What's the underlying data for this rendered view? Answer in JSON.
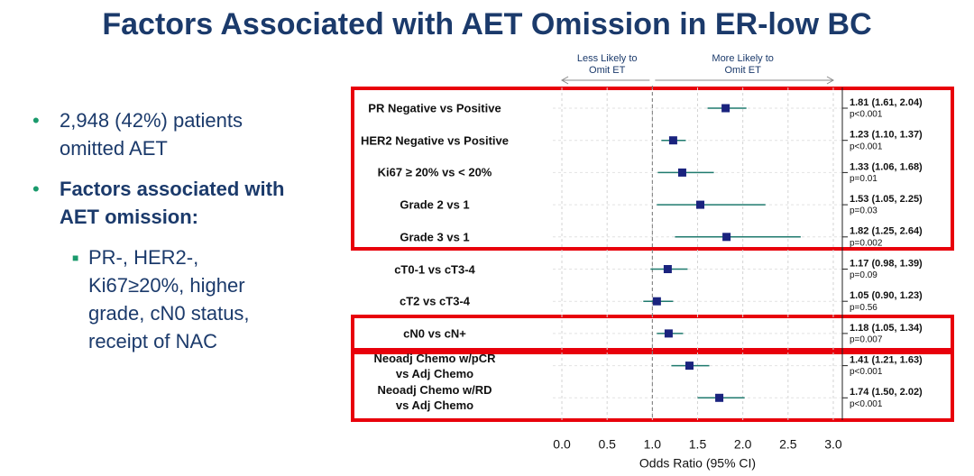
{
  "title": "Factors Associated with AET Omission in ER-low BC",
  "bullets": [
    {
      "text": "2,948 (42%) patients omitted AET",
      "level": 1,
      "bold": false
    },
    {
      "text": "Factors associated with AET omission:",
      "level": 1,
      "bold": true
    },
    {
      "text": "PR-, HER2-, Ki67≥20%, higher grade, cN0 status, receipt of NAC",
      "level": 2,
      "bold": false
    }
  ],
  "chart_data": {
    "type": "forest",
    "categories": [
      "PR Negative vs Positive",
      "HER2 Negative vs Positive",
      "Ki67 ≥ 20% vs < 20%",
      "Grade 2 vs 1",
      "Grade 3 vs 1",
      "cT0-1 vs cT3-4",
      "cT2 vs cT3-4",
      "cN0 vs cN+",
      "Neoadj Chemo w/pCR\nvs Adj Chemo",
      "Neoadj Chemo w/RD\nvs Adj Chemo"
    ],
    "values": [
      1.81,
      1.23,
      1.33,
      1.53,
      1.82,
      1.17,
      1.05,
      1.18,
      1.41,
      1.74
    ],
    "lower": [
      1.61,
      1.1,
      1.06,
      1.05,
      1.25,
      0.98,
      0.9,
      1.05,
      1.21,
      1.5
    ],
    "upper": [
      2.04,
      1.37,
      1.68,
      2.25,
      2.64,
      1.39,
      1.23,
      1.34,
      1.63,
      2.02
    ],
    "value_labels": [
      "1.81 (1.61, 2.04)",
      "1.23 (1.10, 1.37)",
      "1.33 (1.06, 1.68)",
      "1.53 (1.05, 2.25)",
      "1.82 (1.25, 2.64)",
      "1.17 (0.98, 1.39)",
      "1.05 (0.90, 1.23)",
      "1.18 (1.05, 1.34)",
      "1.41 (1.21, 1.63)",
      "1.74 (1.50, 2.02)"
    ],
    "p_labels": [
      "p<0.001",
      "p<0.001",
      "p=0.01",
      "p=0.03",
      "p=0.002",
      "p=0.09",
      "p=0.56",
      "p=0.007",
      "p<0.001",
      "p<0.001"
    ],
    "color": "#1a237e",
    "ci_color": "#1f7a6e",
    "xlabel": "Odds Ratio (95% CI)",
    "xlim": [
      -0.1,
      3.1
    ],
    "xticks": [
      {
        "value": 0,
        "label": "0.0"
      },
      0.5,
      {
        "value": 1,
        "label": "1.0"
      },
      1.5,
      {
        "value": 2,
        "label": "2.0"
      },
      2.5,
      {
        "value": 3,
        "label": "3.0"
      }
    ],
    "reference_line": 1,
    "grid": true,
    "annotations": [
      "Less Likely to\nOmit ET",
      "More Likely to\nOmit ET"
    ]
  }
}
